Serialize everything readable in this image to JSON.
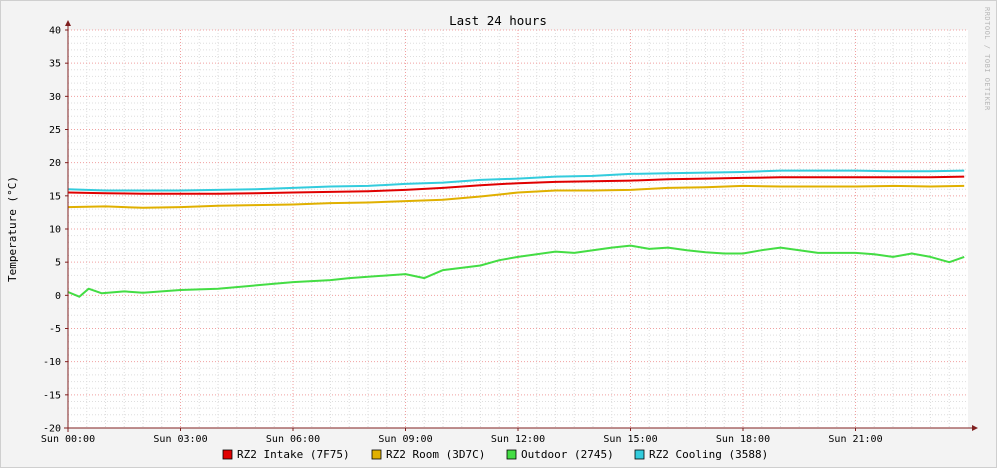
{
  "chart_data": {
    "type": "line",
    "title": "Last 24 hours",
    "ylabel": "Temperature (°C)",
    "watermark": "RRDTOOL / TOBI OETIKER",
    "ylim": [
      -20,
      40
    ],
    "yticks": [
      -20,
      -15,
      -10,
      -5,
      0,
      5,
      10,
      15,
      20,
      25,
      30,
      35,
      40
    ],
    "xlim": [
      0,
      24
    ],
    "xticks": [
      {
        "value": 0,
        "label": "Sun 00:00"
      },
      {
        "value": 3,
        "label": "Sun 03:00"
      },
      {
        "value": 6,
        "label": "Sun 06:00"
      },
      {
        "value": 9,
        "label": "Sun 09:00"
      },
      {
        "value": 12,
        "label": "Sun 12:00"
      },
      {
        "value": 15,
        "label": "Sun 15:00"
      },
      {
        "value": 18,
        "label": "Sun 18:00"
      },
      {
        "value": 21,
        "label": "Sun 21:00"
      }
    ],
    "grid": true,
    "legend_position": "bottom",
    "colors": {
      "background": "#f3f3f3",
      "canvas": "#ffffff",
      "grid_minor": "#dedede",
      "grid_major": "#f0a0a0",
      "axis": "#7f1f1f"
    },
    "series": [
      {
        "name": "RZ2 Intake (7F75)",
        "color": "#e00000",
        "x": [
          0,
          1,
          2,
          3,
          4,
          5,
          6,
          7,
          8,
          9,
          10,
          11,
          12,
          13,
          14,
          15,
          16,
          17,
          18,
          19,
          20,
          21,
          22,
          23,
          23.9
        ],
        "y": [
          15.5,
          15.4,
          15.3,
          15.3,
          15.3,
          15.4,
          15.5,
          15.6,
          15.7,
          15.9,
          16.2,
          16.6,
          16.9,
          17.1,
          17.2,
          17.3,
          17.5,
          17.6,
          17.7,
          17.8,
          17.8,
          17.8,
          17.8,
          17.8,
          17.9
        ]
      },
      {
        "name": "RZ2 Room (3D7C)",
        "color": "#e0b000",
        "x": [
          0,
          1,
          2,
          3,
          4,
          5,
          6,
          7,
          8,
          9,
          10,
          11,
          12,
          13,
          14,
          15,
          16,
          17,
          18,
          19,
          20,
          21,
          22,
          23,
          23.9
        ],
        "y": [
          13.3,
          13.4,
          13.2,
          13.3,
          13.5,
          13.6,
          13.7,
          13.9,
          14.0,
          14.2,
          14.4,
          14.9,
          15.5,
          15.8,
          15.8,
          15.9,
          16.2,
          16.3,
          16.5,
          16.4,
          16.4,
          16.4,
          16.5,
          16.4,
          16.5
        ]
      },
      {
        "name": "Outdoor (2745)",
        "color": "#44dd44",
        "x": [
          0,
          0.3,
          0.55,
          0.9,
          1.5,
          2,
          3,
          4,
          5,
          6,
          7,
          7.5,
          8,
          9,
          9.5,
          10,
          11,
          11.5,
          12,
          12.5,
          13,
          13.5,
          14,
          14.5,
          15,
          15.5,
          16,
          16.5,
          17,
          17.5,
          18,
          18.5,
          19,
          20,
          21,
          21.5,
          22,
          22.5,
          23,
          23.5,
          23.9
        ],
        "y": [
          0.5,
          -0.2,
          1.0,
          0.3,
          0.6,
          0.4,
          0.8,
          1.0,
          1.5,
          2.0,
          2.3,
          2.6,
          2.8,
          3.2,
          2.6,
          3.8,
          4.5,
          5.3,
          5.8,
          6.2,
          6.6,
          6.4,
          6.8,
          7.2,
          7.5,
          7.0,
          7.2,
          6.8,
          6.5,
          6.3,
          6.3,
          6.8,
          7.2,
          6.4,
          6.4,
          6.2,
          5.8,
          6.3,
          5.8,
          5.0,
          5.8
        ]
      },
      {
        "name": "RZ2 Cooling (3588)",
        "color": "#33ccdd",
        "x": [
          0,
          1,
          2,
          3,
          4,
          5,
          6,
          7,
          8,
          9,
          10,
          11,
          12,
          13,
          14,
          15,
          16,
          17,
          18,
          19,
          20,
          21,
          22,
          23,
          23.9
        ],
        "y": [
          16.0,
          15.8,
          15.8,
          15.8,
          15.9,
          16.0,
          16.2,
          16.4,
          16.5,
          16.8,
          17.0,
          17.4,
          17.6,
          17.9,
          18.0,
          18.3,
          18.4,
          18.5,
          18.6,
          18.8,
          18.8,
          18.8,
          18.7,
          18.7,
          18.8
        ]
      }
    ]
  }
}
